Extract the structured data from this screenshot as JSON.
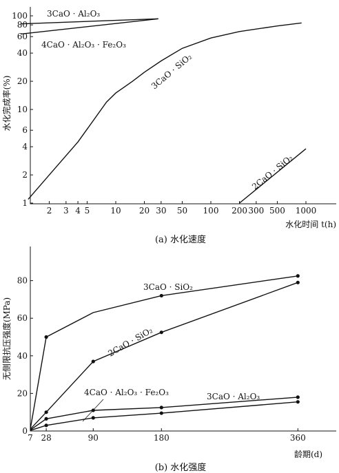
{
  "chart_data": [
    {
      "type": "line",
      "caption": "(a) 水化速度",
      "ylabel": "水化完成率(%)",
      "xlabel": "水化时间 t(h)",
      "xscale": "log",
      "yscale": "log",
      "xlim": [
        1,
        1000
      ],
      "ylim": [
        1,
        100
      ],
      "xticks": [
        {
          "v": 2,
          "label": "2"
        },
        {
          "v": 3,
          "label": "3"
        },
        {
          "v": 4,
          "label": "4"
        },
        {
          "v": 5,
          "label": "5"
        },
        {
          "v": 10,
          "label": "10"
        },
        {
          "v": 20,
          "label": "20"
        },
        {
          "v": 30,
          "label": "30"
        },
        {
          "v": 50,
          "label": "50"
        },
        {
          "v": 100,
          "label": "100"
        },
        {
          "v": 200,
          "label": "200"
        },
        {
          "v": 300,
          "label": "300"
        },
        {
          "v": 500,
          "label": "500"
        },
        {
          "v": 1000,
          "label": "1000"
        }
      ],
      "yticks": [
        {
          "v": 1,
          "label": "1"
        },
        {
          "v": 2,
          "label": "2"
        },
        {
          "v": 4,
          "label": "4"
        },
        {
          "v": 6,
          "label": "6"
        },
        {
          "v": 10,
          "label": "10"
        },
        {
          "v": 20,
          "label": "20"
        },
        {
          "v": 40,
          "label": "40"
        },
        {
          "v": 60,
          "label": "60"
        },
        {
          "v": 80,
          "label": "80"
        },
        {
          "v": 100,
          "label": "100"
        }
      ],
      "series": [
        {
          "name": "3CaO · Al₂O₃",
          "x": [
            1,
            28
          ],
          "y": [
            82,
            93
          ]
        },
        {
          "name": "4CaO · Al₂O₃ · Fe₂O₃",
          "x": [
            1,
            28
          ],
          "y": [
            64,
            93
          ]
        },
        {
          "name": "3CaO · SiO₂",
          "x": [
            1.2,
            2,
            4,
            8,
            10,
            15,
            20,
            30,
            50,
            100,
            200,
            500,
            900
          ],
          "y": [
            1.1,
            2,
            4.5,
            12,
            15,
            20,
            25,
            33,
            45,
            58,
            68,
            78,
            84
          ]
        },
        {
          "name": "2CaO · SiO₂",
          "x": [
            200,
            1000
          ],
          "y": [
            1.0,
            3.8
          ]
        }
      ]
    },
    {
      "type": "line",
      "caption": "(b) 水化强度",
      "ylabel": "无侧限抗压强度(MPa)",
      "xlabel": "龄期(d)",
      "xlim": [
        7,
        370
      ],
      "ylim": [
        0,
        90
      ],
      "xticks": [
        {
          "v": 7,
          "label": "7"
        },
        {
          "v": 28,
          "label": "28"
        },
        {
          "v": 90,
          "label": "90"
        },
        {
          "v": 180,
          "label": "180"
        },
        {
          "v": 360,
          "label": "360"
        }
      ],
      "yticks": [
        {
          "v": 0,
          "label": "0"
        },
        {
          "v": 20,
          "label": "20"
        },
        {
          "v": 40,
          "label": "40"
        },
        {
          "v": 60,
          "label": "60"
        },
        {
          "v": 80,
          "label": "80"
        }
      ],
      "series": [
        {
          "name": "3CaO · SiO₂",
          "x": [
            7,
            28,
            90,
            180,
            360
          ],
          "y": [
            1,
            50,
            63,
            72,
            82.5
          ],
          "markers": [
            28,
            180,
            360
          ]
        },
        {
          "name": "2CaO · SiO₂",
          "x": [
            7,
            28,
            90,
            180,
            360
          ],
          "y": [
            1,
            10,
            37,
            52.5,
            79
          ],
          "markers": [
            28,
            90,
            180,
            360
          ]
        },
        {
          "name": "4CaO · Al₂O₃ · Fe₂O₃",
          "x": [
            7,
            28,
            90,
            180,
            360
          ],
          "y": [
            0.5,
            6.5,
            11,
            12.5,
            18
          ],
          "markers": [
            28,
            90,
            180,
            360
          ]
        },
        {
          "name": "3CaO · Al₂O₃",
          "x": [
            7,
            28,
            90,
            180,
            360
          ],
          "y": [
            0.3,
            3,
            7,
            9.5,
            15.5
          ],
          "markers": [
            28,
            90,
            180,
            360
          ]
        }
      ]
    }
  ]
}
